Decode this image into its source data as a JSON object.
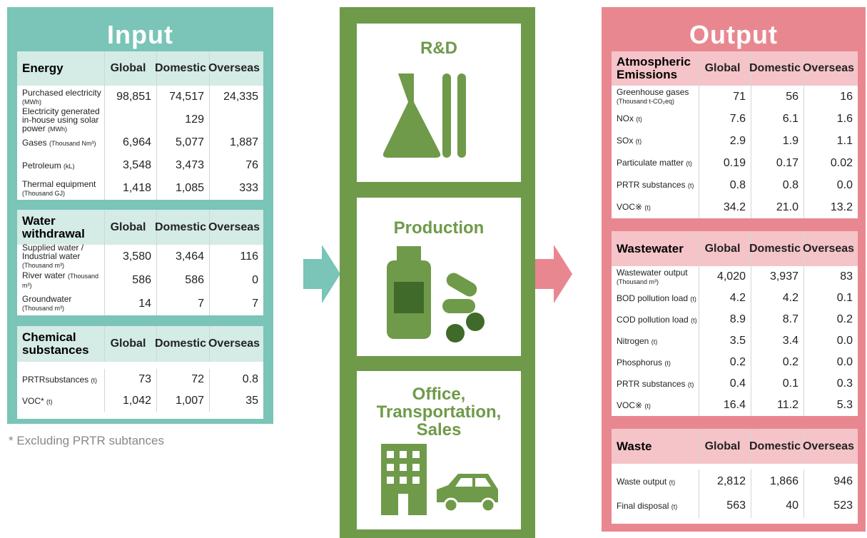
{
  "input": {
    "title": "Input",
    "tables": [
      {
        "title": "Energy",
        "columns": [
          "Global",
          "Domestic",
          "Overseas"
        ],
        "rows": [
          {
            "label": "Purchased electricity",
            "unit": "(MWh)",
            "values": [
              "98,851",
              "74,517",
              "24,335"
            ]
          },
          {
            "label": "Electricity generated in-house using solar power",
            "unit": "(MWh)",
            "values": [
              null,
              "129",
              null
            ]
          },
          {
            "label": "Gases",
            "unit": "(Thousand Nm³)",
            "values": [
              "6,964",
              "5,077",
              "1,887"
            ]
          },
          {
            "label": "Petroleum",
            "unit": "(kL)",
            "values": [
              "3,548",
              "3,473",
              "76"
            ]
          },
          {
            "label": "Thermal equipment",
            "unit": "(Thousand GJ)",
            "values": [
              "1,418",
              "1,085",
              "333"
            ]
          }
        ]
      },
      {
        "title": "Water withdrawal",
        "columns": [
          "Global",
          "Domestic",
          "Overseas"
        ],
        "rows": [
          {
            "label": "Supplied water / Industrial water",
            "unit": "(Thousand m³)",
            "values": [
              "3,580",
              "3,464",
              "116"
            ]
          },
          {
            "label": "River water",
            "unit": "(Thousand m³)",
            "values": [
              "586",
              "586",
              "0"
            ]
          },
          {
            "label": "Groundwater",
            "unit": "(Thousand m³)",
            "values": [
              "14",
              "7",
              "7"
            ]
          }
        ]
      },
      {
        "title": "Chemical substances",
        "columns": [
          "Global",
          "Domestic",
          "Overseas"
        ],
        "rows": [
          {
            "label": "PRTRsubstances",
            "unit": "(t)",
            "values": [
              "73",
              "72",
              "0.8"
            ]
          },
          {
            "label": "VOC*",
            "unit": "(t)",
            "values": [
              "1,042",
              "1,007",
              "35"
            ]
          }
        ]
      }
    ]
  },
  "note": "*  Excluding PRTR subtances",
  "process": {
    "stages": [
      "R&D",
      "Production",
      "Office, Transportation, Sales"
    ]
  },
  "output": {
    "title": "Output",
    "tables": [
      {
        "title": "Atmospheric Emissions",
        "columns": [
          "Global",
          "Domestic",
          "Overseas"
        ],
        "rows": [
          {
            "label": "Greenhouse gases",
            "unit": "(Thousand t-CO₂eq)",
            "values": [
              "71",
              "56",
              "16"
            ]
          },
          {
            "label": "NOx",
            "unit": "(t)",
            "values": [
              "7.6",
              "6.1",
              "1.6"
            ]
          },
          {
            "label": "SOx",
            "unit": "(t)",
            "values": [
              "2.9",
              "1.9",
              "1.1"
            ]
          },
          {
            "label": "Particulate matter",
            "unit": "(t)",
            "values": [
              "0.19",
              "0.17",
              "0.02"
            ]
          },
          {
            "label": "PRTR substances",
            "unit": "(t)",
            "values": [
              "0.8",
              "0.8",
              "0.0"
            ]
          },
          {
            "label": "VOC※",
            "unit": "(t)",
            "values": [
              "34.2",
              "21.0",
              "13.2"
            ]
          }
        ]
      },
      {
        "title": "Wastewater",
        "columns": [
          "Global",
          "Domestic",
          "Overseas"
        ],
        "rows": [
          {
            "label": "Wastewater output",
            "unit": "(Thousand m³)",
            "values": [
              "4,020",
              "3,937",
              "83"
            ]
          },
          {
            "label": "BOD pollution load",
            "unit": "(t)",
            "values": [
              "4.2",
              "4.2",
              "0.1"
            ]
          },
          {
            "label": "COD pollution load",
            "unit": "(t)",
            "values": [
              "8.9",
              "8.7",
              "0.2"
            ]
          },
          {
            "label": "Nitrogen",
            "unit": "(t)",
            "values": [
              "3.5",
              "3.4",
              "0.0"
            ]
          },
          {
            "label": "Phosphorus",
            "unit": "(t)",
            "values": [
              "0.2",
              "0.2",
              "0.0"
            ]
          },
          {
            "label": "PRTR substances",
            "unit": "(t)",
            "values": [
              "0.4",
              "0.1",
              "0.3"
            ]
          },
          {
            "label": "VOC※",
            "unit": "(t)",
            "values": [
              "16.4",
              "11.2",
              "5.3"
            ]
          }
        ]
      },
      {
        "title": "Waste",
        "columns": [
          "Global",
          "Domestic",
          "Overseas"
        ],
        "rows": [
          {
            "label": "Waste output",
            "unit": "(t)",
            "values": [
              "2,812",
              "1,866",
              "946"
            ]
          },
          {
            "label": "Final disposal",
            "unit": "(t)",
            "values": [
              "563",
              "40",
              "523"
            ]
          }
        ]
      }
    ]
  }
}
